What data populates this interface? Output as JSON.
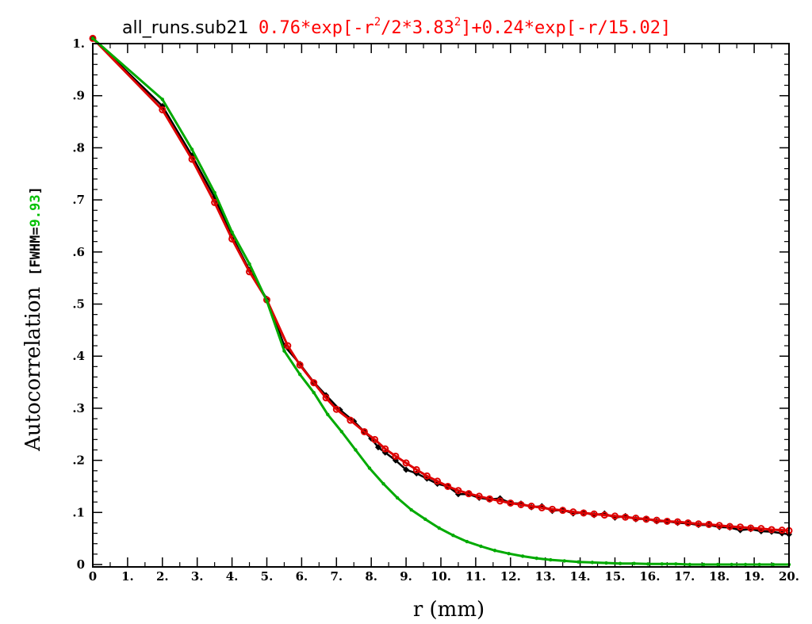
{
  "chart_data": {
    "type": "line",
    "title_dataset": "all_runs.sub21",
    "title_fit": {
      "p1": "0.76*exp[-r",
      "sup1": "2",
      "p2": "/2*3.83",
      "sup2": "2",
      "p3": "]+0.24*exp[-r/15.02]"
    },
    "xlabel": "r (mm)",
    "ylabel": "Autocorrelation",
    "ylabel_bracket_open": "[FWHM=",
    "ylabel_fwhm_value": "9.93",
    "ylabel_bracket_close": "]",
    "xlim": [
      0,
      20
    ],
    "ylim": [
      0,
      1.0
    ],
    "x_ticks": [
      {
        "v": 0,
        "label": "0"
      },
      {
        "v": 1,
        "label": "1."
      },
      {
        "v": 2,
        "label": "2."
      },
      {
        "v": 3,
        "label": "3."
      },
      {
        "v": 4,
        "label": "4."
      },
      {
        "v": 5,
        "label": "5."
      },
      {
        "v": 6,
        "label": "6."
      },
      {
        "v": 7,
        "label": "7."
      },
      {
        "v": 8,
        "label": "8."
      },
      {
        "v": 9,
        "label": "9."
      },
      {
        "v": 10,
        "label": "10."
      },
      {
        "v": 11,
        "label": "11."
      },
      {
        "v": 12,
        "label": "12."
      },
      {
        "v": 13,
        "label": "13."
      },
      {
        "v": 14,
        "label": "14."
      },
      {
        "v": 15,
        "label": "15."
      },
      {
        "v": 16,
        "label": "16."
      },
      {
        "v": 17,
        "label": "17."
      },
      {
        "v": 18,
        "label": "18."
      },
      {
        "v": 19,
        "label": "19."
      },
      {
        "v": 20,
        "label": "20."
      }
    ],
    "y_ticks": [
      {
        "v": 0,
        "label": "0"
      },
      {
        "v": 0.1,
        "label": ".1"
      },
      {
        "v": 0.2,
        "label": ".2"
      },
      {
        "v": 0.3,
        "label": ".3"
      },
      {
        "v": 0.4,
        "label": ".4"
      },
      {
        "v": 0.5,
        "label": ".5"
      },
      {
        "v": 0.6,
        "label": ".6"
      },
      {
        "v": 0.7,
        "label": ".7"
      },
      {
        "v": 0.8,
        "label": ".8"
      },
      {
        "v": 0.9,
        "label": ".9"
      },
      {
        "v": 1.0,
        "label": "1."
      }
    ],
    "colors": {
      "axes": "#000000",
      "title_fit": "#ff0000",
      "fwhm_value": "#00c000",
      "data": "#000000",
      "fit": "#dd0000",
      "gaussian": "#00aa00"
    },
    "series": [
      {
        "key": "data",
        "x": [
          0.0,
          2.0,
          2.85,
          3.5,
          4.0,
          4.5,
          5.0,
          5.5,
          5.95,
          6.35,
          6.7,
          7.1,
          7.5,
          7.8,
          8.0,
          8.2,
          8.4,
          8.7,
          9.0,
          9.3,
          9.6,
          9.9,
          10.2,
          10.5,
          10.8,
          11.1,
          11.4,
          11.7,
          12.0,
          12.3,
          12.6,
          12.9,
          13.2,
          13.5,
          13.8,
          14.1,
          14.4,
          14.7,
          15.0,
          15.3,
          15.6,
          15.9,
          16.2,
          16.5,
          16.8,
          17.1,
          17.4,
          17.7,
          18.0,
          18.3,
          18.6,
          18.9,
          19.2,
          19.5,
          19.8,
          20.0
        ],
        "y": [
          1.01,
          0.88,
          0.785,
          0.705,
          0.63,
          0.565,
          0.51,
          0.42,
          0.385,
          0.35,
          0.325,
          0.297,
          0.275,
          0.255,
          0.242,
          0.225,
          0.215,
          0.2,
          0.182,
          0.175,
          0.165,
          0.155,
          0.15,
          0.135,
          0.135,
          0.128,
          0.125,
          0.127,
          0.118,
          0.117,
          0.11,
          0.112,
          0.103,
          0.105,
          0.098,
          0.1,
          0.095,
          0.098,
          0.09,
          0.093,
          0.087,
          0.088,
          0.083,
          0.083,
          0.08,
          0.079,
          0.076,
          0.076,
          0.072,
          0.071,
          0.066,
          0.068,
          0.064,
          0.063,
          0.06,
          0.058
        ]
      },
      {
        "key": "fit",
        "x": [
          0.0,
          2.0,
          2.85,
          3.5,
          4.0,
          4.5,
          5.0,
          5.6,
          5.95,
          6.35,
          6.7,
          7.0,
          7.4,
          7.8,
          8.1,
          8.4,
          8.7,
          9.0,
          9.3,
          9.6,
          9.9,
          10.2,
          10.5,
          10.8,
          11.1,
          11.4,
          11.7,
          12.0,
          12.3,
          12.6,
          12.9,
          13.2,
          13.5,
          13.8,
          14.1,
          14.4,
          14.7,
          15.0,
          15.3,
          15.6,
          15.9,
          16.2,
          16.5,
          16.8,
          17.1,
          17.4,
          17.7,
          18.0,
          18.3,
          18.6,
          18.9,
          19.2,
          19.5,
          19.8,
          20.0
        ],
        "y": [
          1.01,
          0.873,
          0.778,
          0.695,
          0.625,
          0.562,
          0.508,
          0.42,
          0.383,
          0.349,
          0.32,
          0.298,
          0.277,
          0.255,
          0.24,
          0.222,
          0.208,
          0.195,
          0.182,
          0.17,
          0.16,
          0.15,
          0.142,
          0.136,
          0.131,
          0.126,
          0.122,
          0.118,
          0.115,
          0.112,
          0.109,
          0.106,
          0.104,
          0.101,
          0.099,
          0.097,
          0.095,
          0.093,
          0.091,
          0.089,
          0.087,
          0.085,
          0.083,
          0.082,
          0.08,
          0.078,
          0.077,
          0.075,
          0.073,
          0.072,
          0.07,
          0.069,
          0.067,
          0.066,
          0.065
        ]
      },
      {
        "key": "gaussian",
        "x": [
          0.0,
          2.0,
          2.85,
          3.5,
          4.0,
          4.5,
          5.0,
          5.5,
          5.95,
          6.35,
          6.75,
          7.15,
          7.55,
          7.95,
          8.35,
          8.75,
          9.15,
          9.55,
          9.95,
          10.35,
          10.75,
          11.15,
          11.55,
          11.95,
          12.35,
          12.75,
          13.15,
          13.55,
          13.95,
          14.35,
          14.75,
          15.15,
          15.55,
          15.95,
          16.35,
          16.75,
          17.15,
          17.55,
          17.95,
          18.35,
          18.75,
          19.15,
          19.55,
          20.0
        ],
        "y": [
          1.01,
          0.893,
          0.797,
          0.714,
          0.638,
          0.577,
          0.506,
          0.41,
          0.365,
          0.33,
          0.288,
          0.255,
          0.22,
          0.185,
          0.155,
          0.128,
          0.105,
          0.087,
          0.07,
          0.056,
          0.044,
          0.035,
          0.027,
          0.021,
          0.016,
          0.012,
          0.009,
          0.007,
          0.005,
          0.004,
          0.003,
          0.002,
          0.002,
          0.001,
          0.001,
          0.001,
          0.0,
          0.0,
          0.0,
          0.0,
          0.0,
          0.0,
          0.0,
          0.0
        ]
      }
    ]
  }
}
